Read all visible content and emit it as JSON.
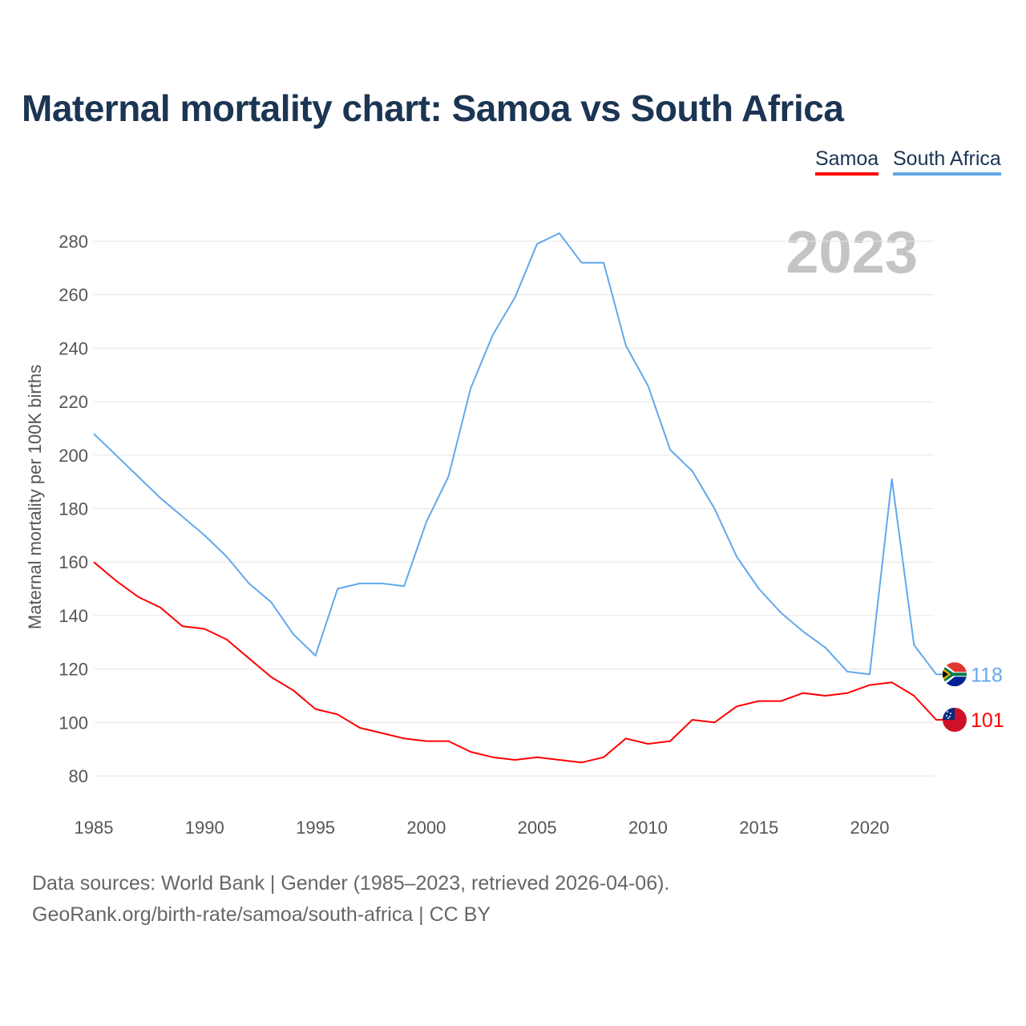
{
  "chart_data": {
    "type": "line",
    "title": "Maternal mortality chart: Samoa vs South Africa",
    "ylabel": "Maternal mortality per 100K births",
    "xlabel": "",
    "ylim": [
      80,
      280
    ],
    "xlim": [
      1985,
      2023
    ],
    "yticks": [
      80,
      100,
      120,
      140,
      160,
      180,
      200,
      220,
      240,
      260,
      280
    ],
    "xticks": [
      1985,
      1990,
      1995,
      2000,
      2005,
      2010,
      2015,
      2020
    ],
    "grid": true,
    "legend_placement": "top-right",
    "year_label": "2023",
    "x": [
      1985,
      1986,
      1987,
      1988,
      1989,
      1990,
      1991,
      1992,
      1993,
      1994,
      1995,
      1996,
      1997,
      1998,
      1999,
      2000,
      2001,
      2002,
      2003,
      2004,
      2005,
      2006,
      2007,
      2008,
      2009,
      2010,
      2011,
      2012,
      2013,
      2014,
      2015,
      2016,
      2017,
      2018,
      2019,
      2020,
      2021,
      2022,
      2023
    ],
    "series": [
      {
        "name": "Samoa",
        "color": "#ff0000",
        "end_label": "101",
        "values": [
          160,
          153,
          147,
          143,
          136,
          135,
          131,
          124,
          117,
          112,
          105,
          103,
          98,
          96,
          94,
          93,
          93,
          89,
          87,
          86,
          87,
          86,
          85,
          87,
          94,
          92,
          93,
          101,
          100,
          106,
          108,
          108,
          111,
          110,
          111,
          114,
          115,
          110,
          101
        ]
      },
      {
        "name": "South Africa",
        "color": "#62a8ec",
        "end_label": "118",
        "values": [
          208,
          200,
          192,
          184,
          177,
          170,
          162,
          152,
          145,
          133,
          125,
          150,
          152,
          152,
          151,
          175,
          192,
          225,
          245,
          259,
          279,
          283,
          272,
          272,
          241,
          226,
          202,
          194,
          180,
          162,
          150,
          141,
          134,
          128,
          119,
          118,
          191,
          129,
          118
        ]
      }
    ]
  },
  "footer": {
    "line1": "Data sources: World Bank | Gender (1985–2023, retrieved 2026-04-06).",
    "line2": "GeoRank.org/birth-rate/samoa/south-africa | CC BY"
  }
}
